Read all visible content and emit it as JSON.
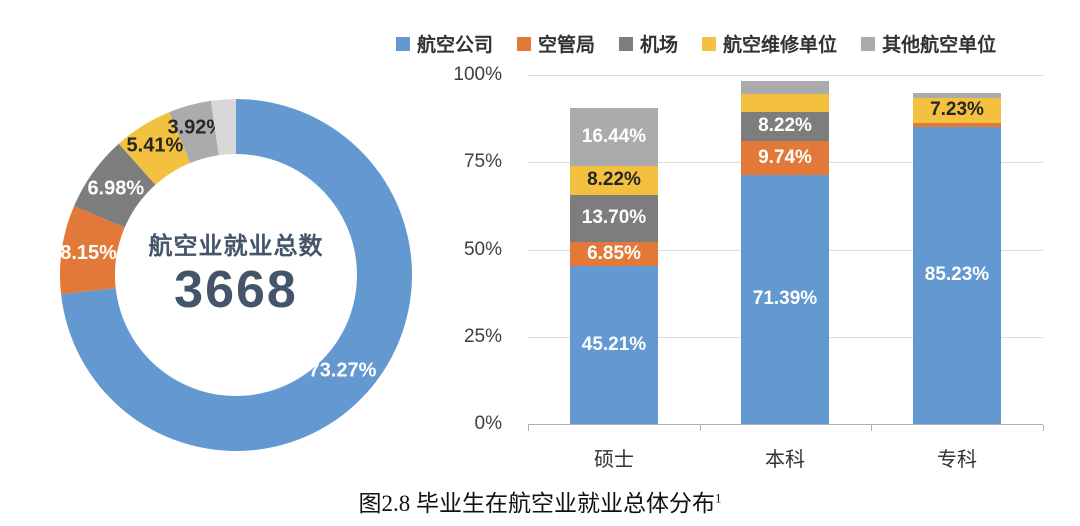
{
  "figure_caption": {
    "text": "图2.8 毕业生在航空业就业总体分布",
    "superscript": "1"
  },
  "legend": {
    "position": "top",
    "items": [
      {
        "label": "航空公司",
        "color": "#6398D1"
      },
      {
        "label": "空管局",
        "color": "#E27939"
      },
      {
        "label": "机场",
        "color": "#7D7D7D"
      },
      {
        "label": "航空维修单位",
        "color": "#F3C13F"
      },
      {
        "label": "其他航空单位",
        "color": "#ABABAB"
      }
    ]
  },
  "chart_data": [
    {
      "type": "pie",
      "subtype": "doughnut",
      "center_label": {
        "title": "航空业就业总数",
        "value": "3668"
      },
      "segments": [
        {
          "label": "航空公司",
          "value": 73.27,
          "display": "73.27%",
          "color": "#6398D1",
          "label_color": "#ffffff"
        },
        {
          "label": "空管局",
          "value": 8.15,
          "display": "8.15%",
          "color": "#E27939",
          "label_color": "#ffffff"
        },
        {
          "label": "机场",
          "value": 6.98,
          "display": "6.98%",
          "color": "#7D7D7D",
          "label_color": "#ffffff"
        },
        {
          "label": "航空维修单位",
          "value": 5.41,
          "display": "5.41%",
          "color": "#F3C13F",
          "label_color": "#262626"
        },
        {
          "label": "其他航空单位",
          "value": 3.92,
          "display": "3.92%",
          "color": "#ABABAB",
          "label_color": "#262626"
        },
        {
          "label": "",
          "value": 2.27,
          "display": "",
          "color": "#D8D8D8",
          "label_color": "#262626",
          "estimated": true
        }
      ]
    },
    {
      "type": "bar",
      "subtype": "stacked-percent",
      "grid": true,
      "ylim": [
        0,
        100
      ],
      "yticks": [
        {
          "value": 0,
          "label": "0%"
        },
        {
          "value": 25,
          "label": "25%"
        },
        {
          "value": 50,
          "label": "50%"
        },
        {
          "value": 75,
          "label": "75%"
        },
        {
          "value": 100,
          "label": "100%"
        }
      ],
      "categories": [
        "硕士",
        "本科",
        "专科"
      ],
      "series": [
        "航空公司",
        "空管局",
        "机场",
        "航空维修单位",
        "其他航空单位"
      ],
      "stacks": [
        [
          {
            "series": "航空公司",
            "value": 45.21,
            "display": "45.21%",
            "label_color": "#ffffff"
          },
          {
            "series": "空管局",
            "value": 6.85,
            "display": "6.85%",
            "label_color": "#ffffff"
          },
          {
            "series": "机场",
            "value": 13.7,
            "display": "13.70%",
            "label_color": "#ffffff"
          },
          {
            "series": "航空维修单位",
            "value": 8.22,
            "display": "8.22%",
            "label_color": "#262626"
          },
          {
            "series": "其他航空单位",
            "value": 16.44,
            "display": "16.44%",
            "label_color": "#ffffff"
          }
        ],
        [
          {
            "series": "航空公司",
            "value": 71.39,
            "display": "71.39%",
            "label_color": "#ffffff"
          },
          {
            "series": "空管局",
            "value": 9.74,
            "display": "9.74%",
            "label_color": "#ffffff"
          },
          {
            "series": "机场",
            "value": 8.22,
            "display": "8.22%",
            "label_color": "#ffffff"
          },
          {
            "series": "航空维修单位",
            "value": 5.2,
            "display": "",
            "label_color": "#262626",
            "estimated": true
          },
          {
            "series": "其他航空单位",
            "value": 3.6,
            "display": "",
            "label_color": "#262626",
            "estimated": true
          }
        ],
        [
          {
            "series": "航空公司",
            "value": 85.23,
            "display": "85.23%",
            "label_color": "#ffffff"
          },
          {
            "series": "空管局",
            "value": 1.0,
            "display": "",
            "label_color": "#ffffff",
            "estimated": true
          },
          {
            "series": "机场",
            "value": 0,
            "display": "",
            "label_color": "#ffffff",
            "estimated": true
          },
          {
            "series": "航空维修单位",
            "value": 7.23,
            "display": "7.23%",
            "label_color": "#262626"
          },
          {
            "series": "其他航空单位",
            "value": 1.5,
            "display": "",
            "label_color": "#262626",
            "estimated": true
          }
        ]
      ]
    }
  ]
}
